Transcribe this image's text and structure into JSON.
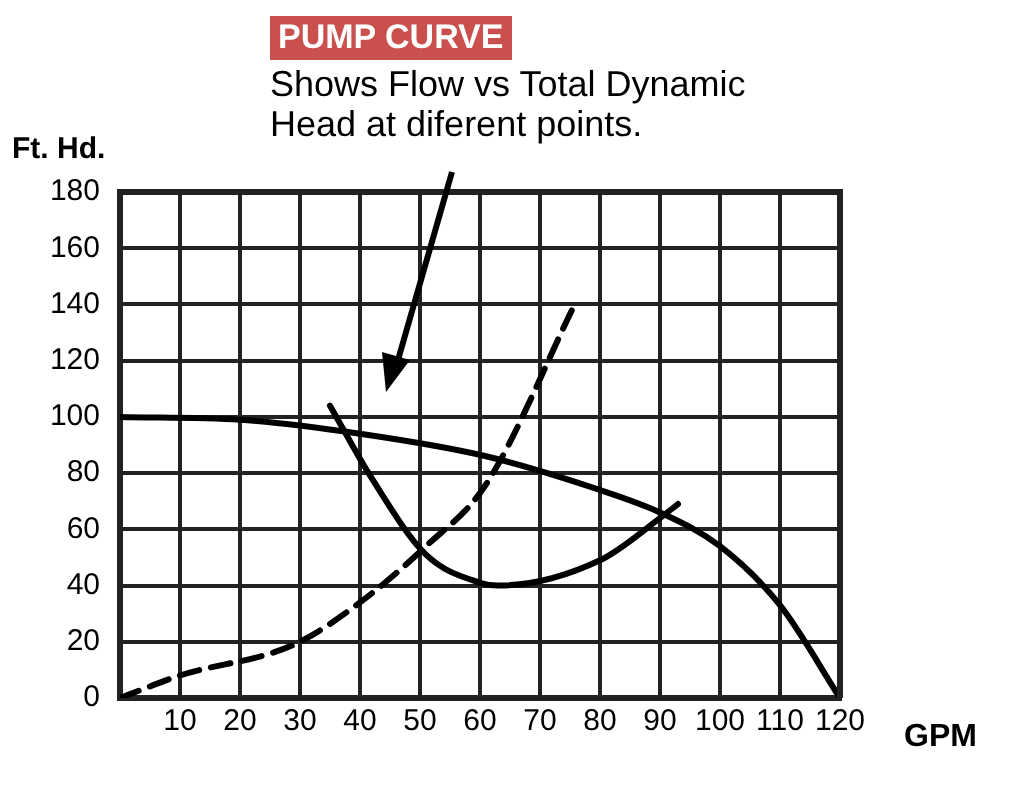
{
  "chart_data": {
    "type": "line",
    "title": "PUMP CURVE",
    "subtitle": "Shows Flow vs Total Dynamic Head at diferent points.",
    "xlabel": "GPM",
    "ylabel": "Ft. Hd.",
    "xlim": [
      0,
      120
    ],
    "xticks": [
      10,
      20,
      30,
      40,
      50,
      60,
      70,
      80,
      90,
      100,
      110,
      120
    ],
    "ylim": [
      0,
      180
    ],
    "yticks": [
      0,
      20,
      40,
      60,
      80,
      100,
      120,
      140,
      160,
      180
    ],
    "grid": true,
    "legend": false,
    "marker": "none",
    "series": [
      {
        "color": "#000000",
        "line_style": "solid",
        "x": [
          0,
          20,
          40,
          61,
          80,
          90,
          100,
          110,
          120
        ],
        "values": [
          100,
          99,
          94,
          86,
          74,
          66,
          54,
          33,
          0
        ]
      },
      {
        "color": "#000000",
        "line_style": "dashed",
        "x": [
          0,
          10,
          29,
          40,
          51,
          61,
          76
        ],
        "values": [
          0,
          8,
          19,
          34,
          54,
          76,
          141
        ]
      },
      {
        "color": "#000000",
        "line_style": "solid",
        "x": [
          35,
          42,
          51,
          60,
          63,
          80,
          90,
          93
        ],
        "values": [
          104,
          78,
          51,
          41,
          40,
          49,
          64,
          69
        ]
      }
    ]
  }
}
